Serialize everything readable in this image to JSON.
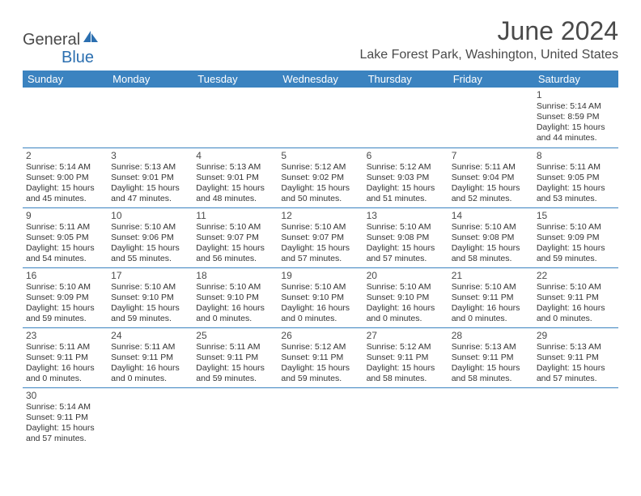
{
  "logo": {
    "part1": "General",
    "part2": "Blue"
  },
  "title": {
    "monthYear": "June 2024",
    "location": "Lake Forest Park, Washington, United States"
  },
  "colors": {
    "headerBar": "#3b83c0",
    "rowDivider": "#3b83c0",
    "text": "#333333",
    "titleText": "#4a4a4a",
    "logoBlue": "#2b6fb0",
    "background": "#ffffff"
  },
  "calendar": {
    "dayNames": [
      "Sunday",
      "Monday",
      "Tuesday",
      "Wednesday",
      "Thursday",
      "Friday",
      "Saturday"
    ],
    "weeks": [
      [
        null,
        null,
        null,
        null,
        null,
        null,
        {
          "n": "1",
          "sr": "5:14 AM",
          "ss": "8:59 PM",
          "dl": "15 hours and 44 minutes."
        }
      ],
      [
        {
          "n": "2",
          "sr": "5:14 AM",
          "ss": "9:00 PM",
          "dl": "15 hours and 45 minutes."
        },
        {
          "n": "3",
          "sr": "5:13 AM",
          "ss": "9:01 PM",
          "dl": "15 hours and 47 minutes."
        },
        {
          "n": "4",
          "sr": "5:13 AM",
          "ss": "9:01 PM",
          "dl": "15 hours and 48 minutes."
        },
        {
          "n": "5",
          "sr": "5:12 AM",
          "ss": "9:02 PM",
          "dl": "15 hours and 50 minutes."
        },
        {
          "n": "6",
          "sr": "5:12 AM",
          "ss": "9:03 PM",
          "dl": "15 hours and 51 minutes."
        },
        {
          "n": "7",
          "sr": "5:11 AM",
          "ss": "9:04 PM",
          "dl": "15 hours and 52 minutes."
        },
        {
          "n": "8",
          "sr": "5:11 AM",
          "ss": "9:05 PM",
          "dl": "15 hours and 53 minutes."
        }
      ],
      [
        {
          "n": "9",
          "sr": "5:11 AM",
          "ss": "9:05 PM",
          "dl": "15 hours and 54 minutes."
        },
        {
          "n": "10",
          "sr": "5:10 AM",
          "ss": "9:06 PM",
          "dl": "15 hours and 55 minutes."
        },
        {
          "n": "11",
          "sr": "5:10 AM",
          "ss": "9:07 PM",
          "dl": "15 hours and 56 minutes."
        },
        {
          "n": "12",
          "sr": "5:10 AM",
          "ss": "9:07 PM",
          "dl": "15 hours and 57 minutes."
        },
        {
          "n": "13",
          "sr": "5:10 AM",
          "ss": "9:08 PM",
          "dl": "15 hours and 57 minutes."
        },
        {
          "n": "14",
          "sr": "5:10 AM",
          "ss": "9:08 PM",
          "dl": "15 hours and 58 minutes."
        },
        {
          "n": "15",
          "sr": "5:10 AM",
          "ss": "9:09 PM",
          "dl": "15 hours and 59 minutes."
        }
      ],
      [
        {
          "n": "16",
          "sr": "5:10 AM",
          "ss": "9:09 PM",
          "dl": "15 hours and 59 minutes."
        },
        {
          "n": "17",
          "sr": "5:10 AM",
          "ss": "9:10 PM",
          "dl": "15 hours and 59 minutes."
        },
        {
          "n": "18",
          "sr": "5:10 AM",
          "ss": "9:10 PM",
          "dl": "16 hours and 0 minutes."
        },
        {
          "n": "19",
          "sr": "5:10 AM",
          "ss": "9:10 PM",
          "dl": "16 hours and 0 minutes."
        },
        {
          "n": "20",
          "sr": "5:10 AM",
          "ss": "9:10 PM",
          "dl": "16 hours and 0 minutes."
        },
        {
          "n": "21",
          "sr": "5:10 AM",
          "ss": "9:11 PM",
          "dl": "16 hours and 0 minutes."
        },
        {
          "n": "22",
          "sr": "5:10 AM",
          "ss": "9:11 PM",
          "dl": "16 hours and 0 minutes."
        }
      ],
      [
        {
          "n": "23",
          "sr": "5:11 AM",
          "ss": "9:11 PM",
          "dl": "16 hours and 0 minutes."
        },
        {
          "n": "24",
          "sr": "5:11 AM",
          "ss": "9:11 PM",
          "dl": "16 hours and 0 minutes."
        },
        {
          "n": "25",
          "sr": "5:11 AM",
          "ss": "9:11 PM",
          "dl": "15 hours and 59 minutes."
        },
        {
          "n": "26",
          "sr": "5:12 AM",
          "ss": "9:11 PM",
          "dl": "15 hours and 59 minutes."
        },
        {
          "n": "27",
          "sr": "5:12 AM",
          "ss": "9:11 PM",
          "dl": "15 hours and 58 minutes."
        },
        {
          "n": "28",
          "sr": "5:13 AM",
          "ss": "9:11 PM",
          "dl": "15 hours and 58 minutes."
        },
        {
          "n": "29",
          "sr": "5:13 AM",
          "ss": "9:11 PM",
          "dl": "15 hours and 57 minutes."
        }
      ],
      [
        {
          "n": "30",
          "sr": "5:14 AM",
          "ss": "9:11 PM",
          "dl": "15 hours and 57 minutes."
        },
        null,
        null,
        null,
        null,
        null,
        null
      ]
    ]
  },
  "labels": {
    "sunrise": "Sunrise:",
    "sunset": "Sunset:",
    "daylight": "Daylight:"
  }
}
